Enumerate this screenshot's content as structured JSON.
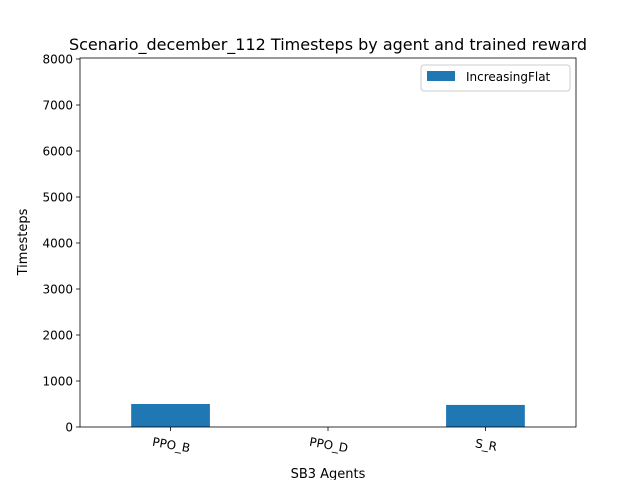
{
  "chart_data": {
    "type": "bar",
    "title": "Scenario_december_112 Timesteps by agent and trained reward",
    "xlabel": "SB3 Agents",
    "ylabel": "Timesteps",
    "categories": [
      "PPO_B",
      "PPO_D",
      "S_R"
    ],
    "series": [
      {
        "name": "IncreasingFlat",
        "values": [
          500,
          0,
          480
        ],
        "color": "#1f77b4"
      }
    ],
    "ylim": [
      0,
      8000
    ],
    "yticks": [
      0,
      1000,
      2000,
      3000,
      4000,
      5000,
      6000,
      7000,
      8000
    ],
    "legend_position": "top-right",
    "grid": false
  }
}
